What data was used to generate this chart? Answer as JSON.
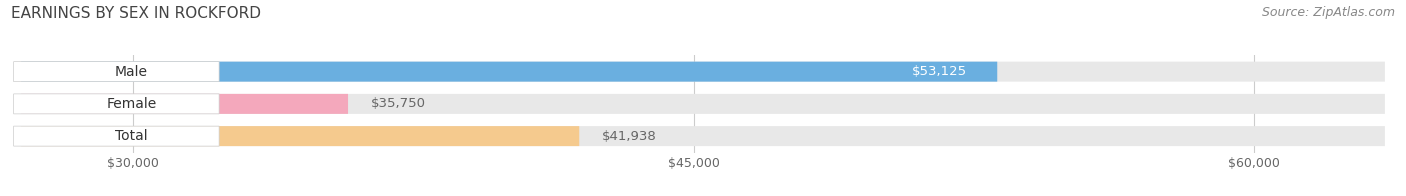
{
  "title": "EARNINGS BY SEX IN ROCKFORD",
  "source": "Source: ZipAtlas.com",
  "categories": [
    "Male",
    "Female",
    "Total"
  ],
  "values": [
    53125,
    35750,
    41938
  ],
  "bar_colors": [
    "#6aafe0",
    "#f4a8bc",
    "#f5ca8e"
  ],
  "value_label_colors": [
    "white",
    "#666666",
    "#666666"
  ],
  "value_strs": [
    "$53,125",
    "$35,750",
    "$41,938"
  ],
  "value_inside": [
    true,
    false,
    false
  ],
  "x_min": 27000,
  "x_max": 63500,
  "x_ticks": [
    30000,
    45000,
    60000
  ],
  "x_tick_labels": [
    "$30,000",
    "$45,000",
    "$60,000"
  ],
  "bar_height": 0.62,
  "background_color": "#ffffff",
  "bar_bg_color": "#e8e8e8",
  "title_fontsize": 11,
  "source_fontsize": 9,
  "label_fontsize": 9.5,
  "tick_fontsize": 9,
  "category_fontsize": 10,
  "grid_color": "#cccccc"
}
